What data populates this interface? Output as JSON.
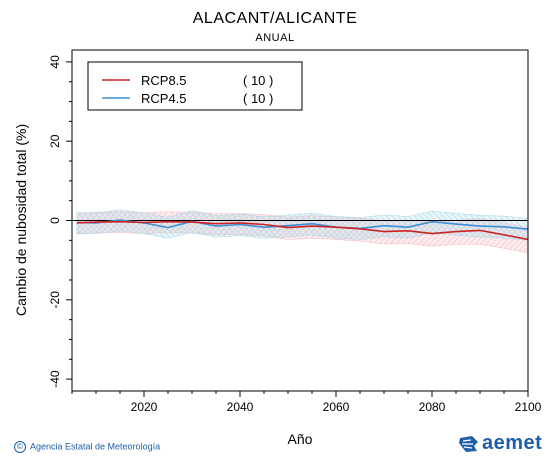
{
  "header": {
    "title": "ALACANT/ALICANTE",
    "subtitle": "ANUAL"
  },
  "footer": {
    "copyright": "Agencia Estatal de Meteorología",
    "logo_text": "aemet"
  },
  "colors": {
    "rcp85": "#cc2222",
    "rcp45": "#3b8fd4",
    "rcp85_band": "#f2b8c0",
    "rcp45_band": "#a8d8e8",
    "logo": "#1f5fa8"
  },
  "chart_data": {
    "type": "line",
    "xlabel": "Año",
    "ylabel": "Cambio de nubosidad total (%)",
    "xlim": [
      2005,
      2100
    ],
    "ylim": [
      -43,
      43
    ],
    "xticks": [
      2020,
      2040,
      2060,
      2080,
      2100
    ],
    "yticks": [
      -40,
      -20,
      0,
      20,
      40
    ],
    "legend": {
      "placement": "top-left"
    },
    "x": [
      2006,
      2010,
      2015,
      2020,
      2025,
      2030,
      2035,
      2040,
      2045,
      2050,
      2055,
      2060,
      2065,
      2070,
      2075,
      2080,
      2085,
      2090,
      2095,
      2100
    ],
    "series": [
      {
        "name": "RCP8.5",
        "count": "( 10 )",
        "color": "#cc2222",
        "values": [
          -0.6,
          -0.4,
          -0.3,
          -0.5,
          -0.3,
          -0.4,
          -0.8,
          -0.6,
          -1.0,
          -1.8,
          -1.4,
          -1.7,
          -2.1,
          -2.8,
          -2.6,
          -3.3,
          -2.8,
          -2.5,
          -3.6,
          -4.8
        ],
        "lower": [
          -3.4,
          -3.1,
          -3.0,
          -3.3,
          -3.0,
          -3.2,
          -3.6,
          -3.5,
          -3.9,
          -4.8,
          -4.5,
          -4.8,
          -5.2,
          -5.9,
          -5.8,
          -6.5,
          -6.0,
          -6.0,
          -7.0,
          -8.2
        ],
        "upper": [
          1.8,
          2.1,
          2.2,
          2.0,
          2.2,
          2.1,
          1.7,
          1.8,
          1.5,
          0.8,
          1.2,
          0.9,
          0.6,
          -0.1,
          0.1,
          -0.4,
          0.1,
          0.5,
          -0.6,
          -1.8
        ]
      },
      {
        "name": "RCP4.5",
        "count": "( 10 )",
        "color": "#3b8fd4",
        "values": [
          -0.5,
          -0.6,
          0.1,
          -0.6,
          -1.8,
          -0.2,
          -1.4,
          -1.0,
          -1.7,
          -1.3,
          -0.8,
          -1.7,
          -2.0,
          -1.3,
          -1.7,
          -0.3,
          -0.9,
          -1.4,
          -1.6,
          -2.2
        ],
        "lower": [
          -3.2,
          -3.3,
          -2.6,
          -3.3,
          -4.5,
          -3.0,
          -4.2,
          -3.8,
          -4.5,
          -4.1,
          -3.6,
          -4.5,
          -4.8,
          -4.1,
          -4.5,
          -3.1,
          -3.7,
          -4.2,
          -4.4,
          -5.0
        ],
        "upper": [
          2.0,
          1.9,
          2.7,
          1.9,
          0.8,
          2.5,
          1.2,
          1.6,
          0.9,
          1.4,
          1.9,
          1.0,
          0.7,
          1.4,
          1.0,
          2.4,
          1.8,
          1.3,
          1.1,
          0.5
        ]
      }
    ]
  }
}
